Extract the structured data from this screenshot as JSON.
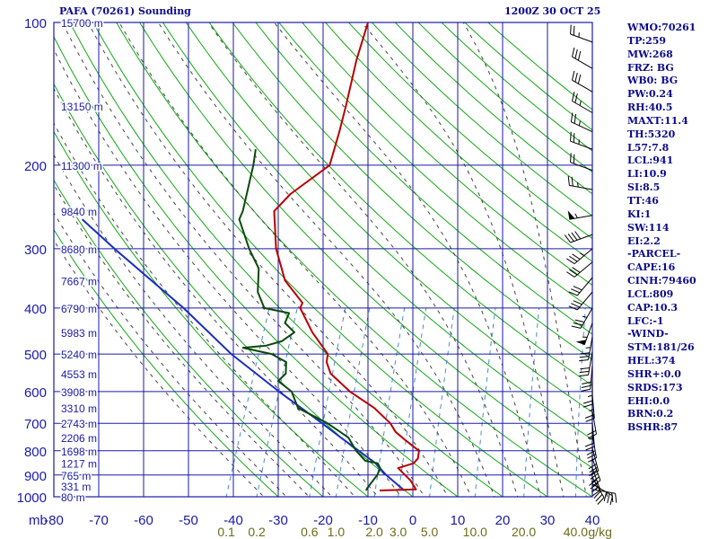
{
  "title_left": "PAFA (70261) Sounding",
  "title_right": "1200Z 30 OCT 25",
  "colors": {
    "frame": "#1a1aa8",
    "temperature": "#b80000",
    "dewpoint": "#0a4a0a",
    "parcel": "#1a2ec0",
    "dry_adiabat": "#13a813",
    "moist_adiabat": "#444444",
    "mixing_ratio": "#4a8ad0",
    "index_text": "#0a0a8a",
    "mixing_label": "#6b6b1a"
  },
  "chart_data": {
    "type": "skew-t",
    "xlabel": "",
    "ylabel": "mb",
    "xlim": [
      -80,
      40
    ],
    "pressure_range": [
      1000,
      100
    ],
    "pressure_ticks": [
      100,
      200,
      300,
      400,
      500,
      600,
      700,
      800,
      900,
      1000
    ],
    "pressure_tick_labels": [
      "100",
      "200",
      "300",
      "400",
      "500",
      "600",
      "700",
      "800",
      "900",
      "1000"
    ],
    "temp_ticks": [
      -80,
      -70,
      -60,
      -50,
      -40,
      -30,
      -20,
      -10,
      0,
      10,
      20,
      30,
      40
    ],
    "temp_tick_labels": [
      "-80",
      "-70",
      "-60",
      "-50",
      "-40",
      "-30",
      "-20",
      "-10",
      "0",
      "10",
      "20",
      "30",
      "40"
    ],
    "mixing_ratio_labels": [
      "0.1",
      "0.2",
      "0.6",
      "1.0",
      "2.0",
      "3.0",
      "5.0",
      "10.0",
      "20.0",
      "40.0"
    ],
    "mixing_ratio_unit": "g/kg",
    "height_labels": [
      {
        "p": 100,
        "text": "15700 m"
      },
      {
        "p": 150,
        "text": "13150 m"
      },
      {
        "p": 200,
        "text": "11300 m"
      },
      {
        "p": 250,
        "text": "9840 m"
      },
      {
        "p": 300,
        "text": "8680 m"
      },
      {
        "p": 350,
        "text": "7667 m"
      },
      {
        "p": 400,
        "text": "6790 m"
      },
      {
        "p": 450,
        "text": "5983 m"
      },
      {
        "p": 500,
        "text": "5240 m"
      },
      {
        "p": 550,
        "text": "4553 m"
      },
      {
        "p": 600,
        "text": "3908 m"
      },
      {
        "p": 650,
        "text": "3310 m"
      },
      {
        "p": 700,
        "text": "2743 m"
      },
      {
        "p": 750,
        "text": "2206 m"
      },
      {
        "p": 800,
        "text": "1698 m"
      },
      {
        "p": 850,
        "text": "1217 m"
      },
      {
        "p": 900,
        "text": "765 m"
      },
      {
        "p": 950,
        "text": "331 m"
      },
      {
        "p": 1000,
        "text": "80 m"
      }
    ],
    "temperature": [
      {
        "p": 970,
        "t": -8
      },
      {
        "p": 965,
        "t": 0
      },
      {
        "p": 925,
        "t": -2
      },
      {
        "p": 870,
        "t": -6
      },
      {
        "p": 850,
        "t": -3
      },
      {
        "p": 830,
        "t": -2.5
      },
      {
        "p": 800,
        "t": -3
      },
      {
        "p": 760,
        "t": -7
      },
      {
        "p": 730,
        "t": -10
      },
      {
        "p": 700,
        "t": -12
      },
      {
        "p": 650,
        "t": -17
      },
      {
        "p": 600,
        "t": -24
      },
      {
        "p": 550,
        "t": -30
      },
      {
        "p": 520,
        "t": -32
      },
      {
        "p": 500,
        "t": -32.5
      },
      {
        "p": 450,
        "t": -38
      },
      {
        "p": 400,
        "t": -43
      },
      {
        "p": 390,
        "t": -43
      },
      {
        "p": 350,
        "t": -49
      },
      {
        "p": 300,
        "t": -54
      },
      {
        "p": 250,
        "t": -58
      },
      {
        "p": 230,
        "t": -56
      },
      {
        "p": 200,
        "t": -50
      },
      {
        "p": 170,
        "t": -51
      },
      {
        "p": 150,
        "t": -52
      },
      {
        "p": 120,
        "t": -54
      },
      {
        "p": 100,
        "t": -55
      }
    ],
    "dewpoint": [
      {
        "p": 970,
        "t": -11
      },
      {
        "p": 960,
        "t": -11
      },
      {
        "p": 900,
        "t": -10
      },
      {
        "p": 870,
        "t": -10
      },
      {
        "p": 850,
        "t": -11
      },
      {
        "p": 840,
        "t": -14
      },
      {
        "p": 800,
        "t": -17
      },
      {
        "p": 750,
        "t": -20
      },
      {
        "p": 700,
        "t": -26
      },
      {
        "p": 650,
        "t": -34
      },
      {
        "p": 600,
        "t": -37
      },
      {
        "p": 570,
        "t": -41
      },
      {
        "p": 550,
        "t": -40
      },
      {
        "p": 520,
        "t": -41
      },
      {
        "p": 500,
        "t": -45
      },
      {
        "p": 485,
        "t": -52
      },
      {
        "p": 480,
        "t": -47
      },
      {
        "p": 470,
        "t": -44
      },
      {
        "p": 450,
        "t": -42
      },
      {
        "p": 430,
        "t": -45
      },
      {
        "p": 410,
        "t": -45
      },
      {
        "p": 400,
        "t": -51
      },
      {
        "p": 370,
        "t": -54
      },
      {
        "p": 330,
        "t": -56
      },
      {
        "p": 300,
        "t": -60
      },
      {
        "p": 260,
        "t": -65
      },
      {
        "p": 250,
        "t": -65
      },
      {
        "p": 200,
        "t": -67
      },
      {
        "p": 185,
        "t": -68
      }
    ],
    "parcel": [
      {
        "p": 970,
        "t": -2.5
      },
      {
        "p": 900,
        "t": -8
      },
      {
        "p": 850,
        "t": -11.5
      },
      {
        "p": 800,
        "t": -16.4
      },
      {
        "p": 750,
        "t": -21.7
      },
      {
        "p": 700,
        "t": -27.2
      },
      {
        "p": 600,
        "t": -39.8
      },
      {
        "p": 500,
        "t": -54
      },
      {
        "p": 400,
        "t": -69
      },
      {
        "p": 300,
        "t": -90
      },
      {
        "p": 260,
        "t": -100
      }
    ],
    "wind_barbs": [
      {
        "p": 110,
        "dir": 290,
        "kt": 25
      },
      {
        "p": 125,
        "dir": 300,
        "kt": 30
      },
      {
        "p": 140,
        "dir": 300,
        "kt": 30
      },
      {
        "p": 155,
        "dir": 300,
        "kt": 25
      },
      {
        "p": 170,
        "dir": 295,
        "kt": 25
      },
      {
        "p": 185,
        "dir": 290,
        "kt": 25
      },
      {
        "p": 205,
        "dir": 290,
        "kt": 20
      },
      {
        "p": 225,
        "dir": 280,
        "kt": 25
      },
      {
        "p": 255,
        "dir": 260,
        "kt": 55
      },
      {
        "p": 280,
        "dir": 250,
        "kt": 40
      },
      {
        "p": 300,
        "dir": 230,
        "kt": 35
      },
      {
        "p": 320,
        "dir": 230,
        "kt": 30
      },
      {
        "p": 345,
        "dir": 220,
        "kt": 30
      },
      {
        "p": 370,
        "dir": 220,
        "kt": 30
      },
      {
        "p": 400,
        "dir": 210,
        "kt": 35
      },
      {
        "p": 430,
        "dir": 200,
        "kt": 55
      },
      {
        "p": 460,
        "dir": 190,
        "kt": 35
      },
      {
        "p": 495,
        "dir": 190,
        "kt": 30
      },
      {
        "p": 530,
        "dir": 185,
        "kt": 30
      },
      {
        "p": 570,
        "dir": 180,
        "kt": 25
      },
      {
        "p": 610,
        "dir": 175,
        "kt": 25
      },
      {
        "p": 660,
        "dir": 170,
        "kt": 20
      },
      {
        "p": 700,
        "dir": 175,
        "kt": 25
      },
      {
        "p": 740,
        "dir": 170,
        "kt": 30
      },
      {
        "p": 790,
        "dir": 165,
        "kt": 35
      },
      {
        "p": 830,
        "dir": 160,
        "kt": 40
      },
      {
        "p": 870,
        "dir": 160,
        "kt": 40
      },
      {
        "p": 910,
        "dir": 150,
        "kt": 35
      },
      {
        "p": 940,
        "dir": 120,
        "kt": 30
      },
      {
        "p": 965,
        "dir": 100,
        "kt": 25
      }
    ]
  },
  "indices": [
    "WMO:70261",
    "TP:259",
    "MW:268",
    "FRZ: BG",
    "WB0: BG",
    "PW:0.24",
    "RH:40.5",
    "MAXT:11.4",
    "TH:5320",
    "L57:7.8",
    "LCL:941",
    "LI:10.9",
    "SI:8.5",
    "TT:46",
    "KI:1",
    "SW:114",
    "EI:2.2",
    "-PARCEL-",
    "CAPE:16",
    "CINH:79460",
    "LCL:809",
    "CAP:10.3",
    "LFC:-1",
    "-WIND-",
    "STM:181/26",
    "HEL:374",
    "SHR+:0.0",
    "SRDS:173",
    "EHI:0.0",
    "BRN:0.2",
    "BSHR:87"
  ]
}
